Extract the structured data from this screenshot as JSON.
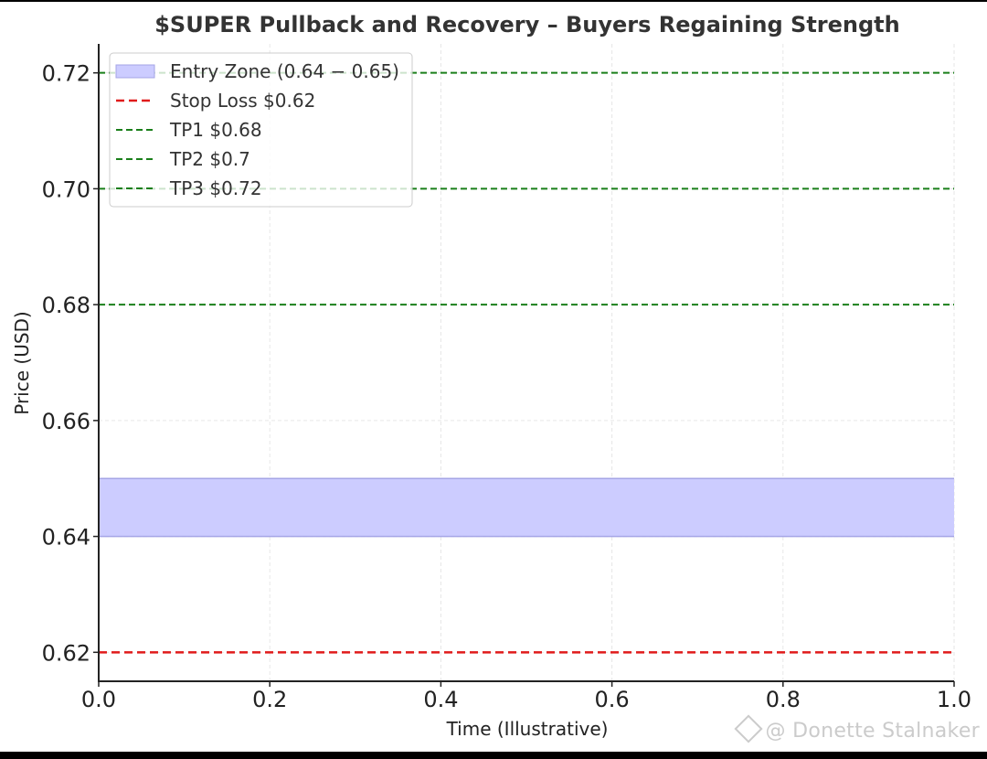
{
  "chart_data": {
    "type": "line",
    "title": "$SUPER Pullback and Recovery – Buyers Regaining Strength",
    "xlabel": "Time (Illustrative)",
    "ylabel": "Price (USD)",
    "xlim": [
      0.0,
      1.0
    ],
    "ylim": [
      0.615,
      0.725
    ],
    "x_ticks": [
      0.0,
      0.2,
      0.4,
      0.6,
      0.8,
      1.0
    ],
    "x_tick_labels": [
      "0.0",
      "0.2",
      "0.4",
      "0.6",
      "0.8",
      "1.0"
    ],
    "y_ticks": [
      0.62,
      0.64,
      0.66,
      0.68,
      0.7,
      0.72
    ],
    "y_tick_labels": [
      "0.62",
      "0.64",
      "0.66",
      "0.68",
      "0.70",
      "0.72"
    ],
    "grid": true,
    "legend_position": "top-left",
    "zones": [
      {
        "name": "Entry Zone (0.64 − 0.65)",
        "y_min": 0.64,
        "y_max": 0.65,
        "color": "#ccccff",
        "edge_color": "#a5a5e6"
      }
    ],
    "series": [
      {
        "name": "Stop Loss $0.62",
        "y": 0.62,
        "style": "dashed",
        "color": "#e01b1b"
      },
      {
        "name": "TP1 $0.68",
        "y": 0.68,
        "style": "dashed",
        "color": "#1a7f1a"
      },
      {
        "name": "TP2 $0.7",
        "y": 0.7,
        "style": "dashed",
        "color": "#1a7f1a"
      },
      {
        "name": "TP3 $0.72",
        "y": 0.72,
        "style": "dashed",
        "color": "#1a7f1a"
      }
    ]
  },
  "watermark": {
    "text": "@ Donette Stalnaker",
    "icon": "binance-logo-icon"
  }
}
